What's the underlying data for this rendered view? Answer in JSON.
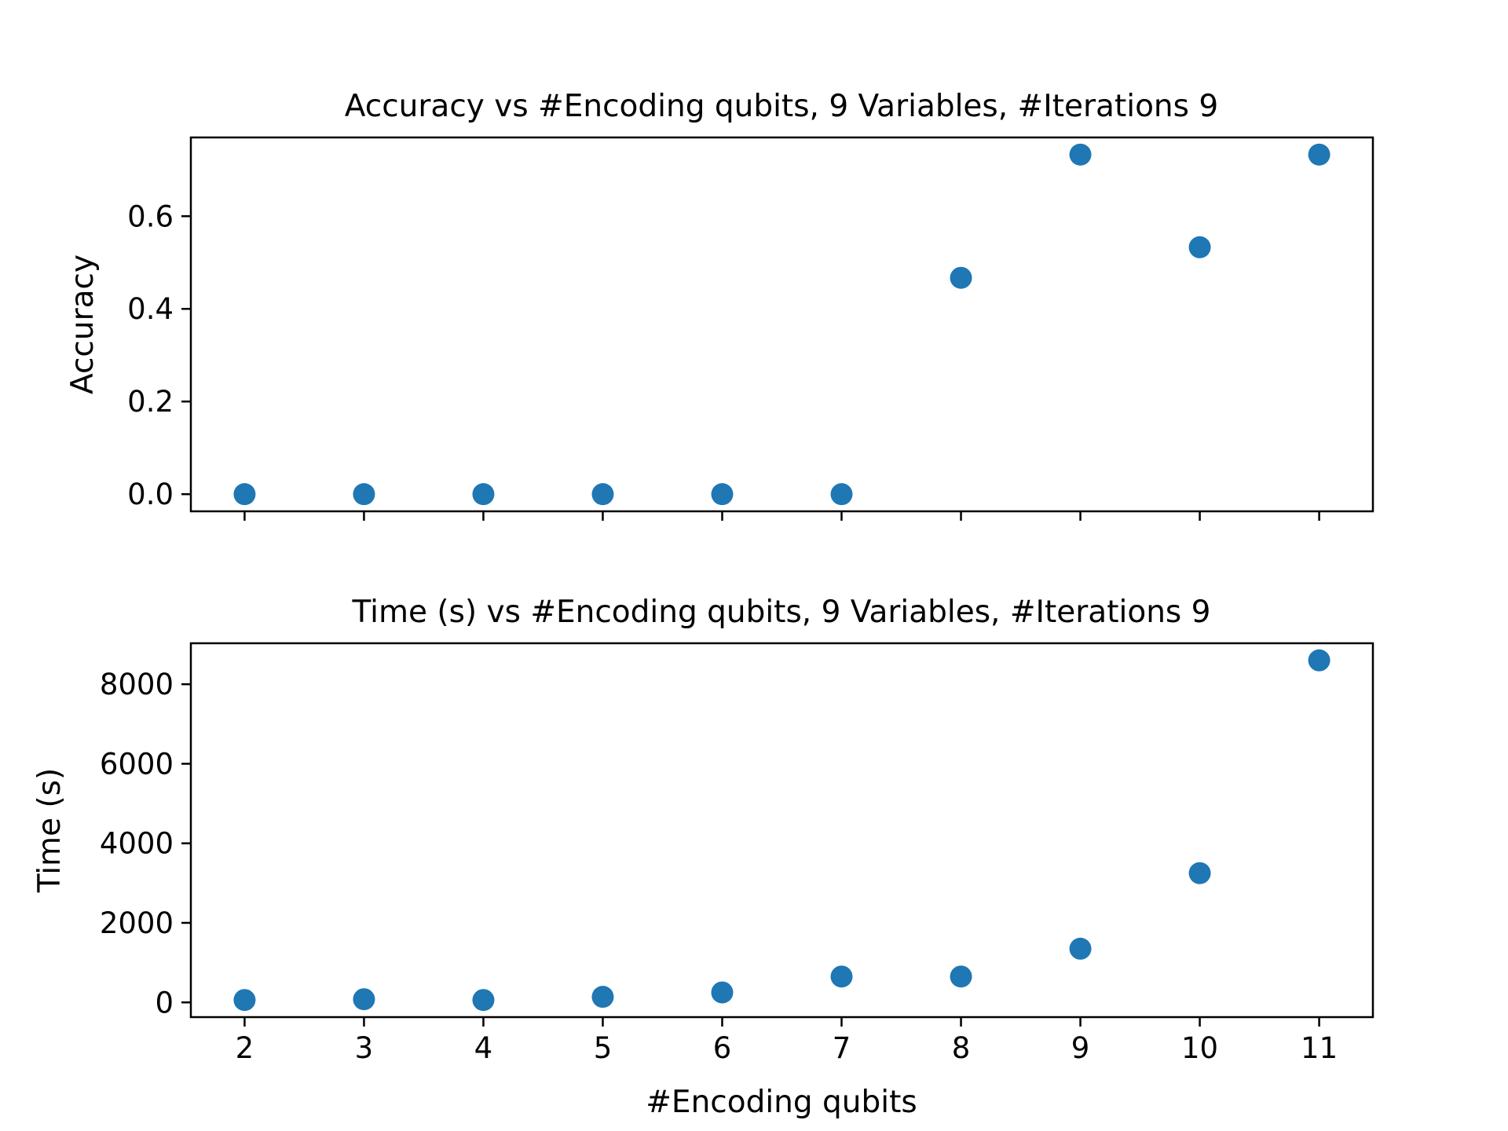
{
  "chart_data": [
    {
      "type": "scatter",
      "title": "Accuracy vs #Encoding qubits, 9 Variables, #Iterations 9",
      "xlabel": "",
      "ylabel": "Accuracy",
      "x": [
        2,
        3,
        4,
        5,
        6,
        7,
        8,
        9,
        10,
        11
      ],
      "y": [
        0.0,
        0.0,
        0.0,
        0.0,
        0.0,
        0.0,
        0.467,
        0.733,
        0.533,
        0.733
      ],
      "xlim": [
        1.55,
        11.45
      ],
      "ylim": [
        -0.037,
        0.77
      ],
      "xticks": [
        2,
        3,
        4,
        5,
        6,
        7,
        8,
        9,
        10,
        11
      ],
      "xtick_labels_shown": false,
      "yticks": [
        0.0,
        0.2,
        0.4,
        0.6
      ],
      "ytick_labels": [
        "0.0",
        "0.2",
        "0.4",
        "0.6"
      ],
      "grid": false,
      "color": "#1f77b4"
    },
    {
      "type": "scatter",
      "title": "Time (s) vs #Encoding qubits, 9 Variables, #Iterations 9",
      "xlabel": "#Encoding qubits",
      "ylabel": "Time (s)",
      "x": [
        2,
        3,
        4,
        5,
        6,
        7,
        8,
        9,
        10,
        11
      ],
      "y": [
        60,
        80,
        60,
        140,
        250,
        650,
        650,
        1350,
        3250,
        8600
      ],
      "xlim": [
        1.55,
        11.45
      ],
      "ylim": [
        -370,
        9030
      ],
      "xticks": [
        2,
        3,
        4,
        5,
        6,
        7,
        8,
        9,
        10,
        11
      ],
      "xtick_labels": [
        "2",
        "3",
        "4",
        "5",
        "6",
        "7",
        "8",
        "9",
        "10",
        "11"
      ],
      "xtick_labels_shown": true,
      "yticks": [
        0,
        2000,
        4000,
        6000,
        8000
      ],
      "ytick_labels": [
        "0",
        "2000",
        "4000",
        "6000",
        "8000"
      ],
      "grid": false,
      "color": "#1f77b4"
    }
  ]
}
